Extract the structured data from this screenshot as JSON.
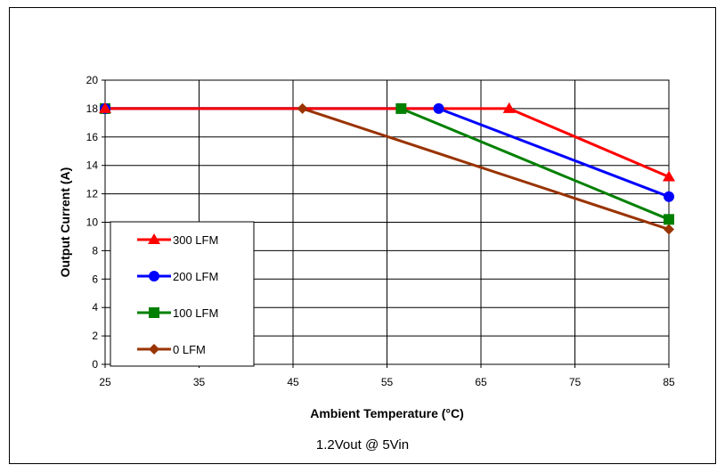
{
  "caption": "1.2Vout @ 5Vin",
  "chart_data": {
    "type": "line",
    "xlabel": "Ambient Temperature (°C)",
    "ylabel": "Output Current (A)",
    "xlim": [
      25,
      85
    ],
    "ylim": [
      0,
      20
    ],
    "xticks": [
      25,
      35,
      45,
      55,
      65,
      75,
      85
    ],
    "yticks": [
      0,
      2,
      4,
      6,
      8,
      10,
      12,
      14,
      16,
      18,
      20
    ],
    "grid": true,
    "legend_position": "bottom-left",
    "series": [
      {
        "name": "300 LFM",
        "color": "#ff0000",
        "marker": "triangle",
        "x": [
          25,
          68,
          85
        ],
        "y": [
          18,
          18,
          13.2
        ]
      },
      {
        "name": "200 LFM",
        "color": "#0000ff",
        "marker": "circle",
        "x": [
          25,
          60.5,
          85
        ],
        "y": [
          18,
          18,
          11.8
        ]
      },
      {
        "name": "100 LFM",
        "color": "#008000",
        "marker": "square",
        "x": [
          25,
          56.5,
          85
        ],
        "y": [
          18,
          18,
          10.2
        ]
      },
      {
        "name": "0 LFM",
        "color": "#993300",
        "marker": "diamond",
        "x": [
          25,
          46,
          85
        ],
        "y": [
          18,
          18,
          9.5
        ]
      }
    ]
  }
}
